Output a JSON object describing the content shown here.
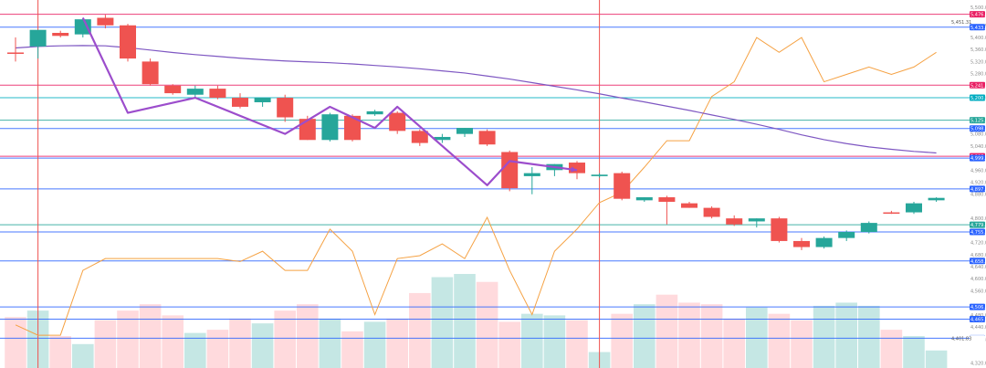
{
  "chart_data": {
    "type": "candlestick",
    "title": "",
    "xlabel": "",
    "ylabel": "",
    "ylim": [
      4304,
      5524
    ],
    "grid": false,
    "price_axis_ticks": [
      "5,500.00",
      "5,440.00",
      "5,400.00",
      "5,360.00",
      "5,320.00",
      "5,280.00",
      "5,200.00",
      "5,080.00",
      "5,040.00",
      "4,960.00",
      "4,920.00",
      "4,880.00",
      "4,800.00",
      "4,720.00",
      "4,680.00",
      "4,640.00",
      "4,600.00",
      "4,560.00",
      "4,480.00",
      "4,440.00",
      "4,400.00",
      "4,320.00"
    ],
    "candles": [
      {
        "o": 5350,
        "h": 5400,
        "l": 5320,
        "c": 5350,
        "dir": "down"
      },
      {
        "o": 5370,
        "h": 5420,
        "l": 5330,
        "c": 5425,
        "dir": "up"
      },
      {
        "o": 5415,
        "h": 5422,
        "l": 5400,
        "c": 5405,
        "dir": "down"
      },
      {
        "o": 5410,
        "h": 5465,
        "l": 5400,
        "c": 5460,
        "dir": "up"
      },
      {
        "o": 5465,
        "h": 5475,
        "l": 5430,
        "c": 5440,
        "dir": "down"
      },
      {
        "o": 5440,
        "h": 5445,
        "l": 5320,
        "c": 5330,
        "dir": "down"
      },
      {
        "o": 5320,
        "h": 5330,
        "l": 5240,
        "c": 5245,
        "dir": "down"
      },
      {
        "o": 5240,
        "h": 5245,
        "l": 5210,
        "c": 5215,
        "dir": "down"
      },
      {
        "o": 5210,
        "h": 5240,
        "l": 5200,
        "c": 5230,
        "dir": "up"
      },
      {
        "o": 5230,
        "h": 5240,
        "l": 5195,
        "c": 5200,
        "dir": "down"
      },
      {
        "o": 5200,
        "h": 5215,
        "l": 5165,
        "c": 5170,
        "dir": "down"
      },
      {
        "o": 5185,
        "h": 5200,
        "l": 5170,
        "c": 5200,
        "dir": "up"
      },
      {
        "o": 5200,
        "h": 5210,
        "l": 5120,
        "c": 5135,
        "dir": "down"
      },
      {
        "o": 5130,
        "h": 5140,
        "l": 5060,
        "c": 5060,
        "dir": "down"
      },
      {
        "o": 5060,
        "h": 5150,
        "l": 5055,
        "c": 5145,
        "dir": "up"
      },
      {
        "o": 5140,
        "h": 5145,
        "l": 5055,
        "c": 5060,
        "dir": "down"
      },
      {
        "o": 5155,
        "h": 5160,
        "l": 5140,
        "c": 5145,
        "dir": "up"
      },
      {
        "o": 5150,
        "h": 5155,
        "l": 5080,
        "c": 5090,
        "dir": "down"
      },
      {
        "o": 5090,
        "h": 5095,
        "l": 5040,
        "c": 5050,
        "dir": "down"
      },
      {
        "o": 5060,
        "h": 5080,
        "l": 5050,
        "c": 5070,
        "dir": "up"
      },
      {
        "o": 5080,
        "h": 5100,
        "l": 5070,
        "c": 5100,
        "dir": "up"
      },
      {
        "o": 5090,
        "h": 5095,
        "l": 5040,
        "c": 5045,
        "dir": "down"
      },
      {
        "o": 5020,
        "h": 5025,
        "l": 4890,
        "c": 4900,
        "dir": "down"
      },
      {
        "o": 4940,
        "h": 4970,
        "l": 4880,
        "c": 4950,
        "dir": "up"
      },
      {
        "o": 4960,
        "h": 4980,
        "l": 4940,
        "c": 4980,
        "dir": "up"
      },
      {
        "o": 4985,
        "h": 4990,
        "l": 4930,
        "c": 4950,
        "dir": "down"
      },
      {
        "o": 4940,
        "h": 4950,
        "l": 4935,
        "c": 4945,
        "dir": "up"
      },
      {
        "o": 4950,
        "h": 4955,
        "l": 4860,
        "c": 4865,
        "dir": "down"
      },
      {
        "o": 4860,
        "h": 4870,
        "l": 4855,
        "c": 4870,
        "dir": "up"
      },
      {
        "o": 4870,
        "h": 4875,
        "l": 4780,
        "c": 4855,
        "dir": "down"
      },
      {
        "o": 4850,
        "h": 4855,
        "l": 4835,
        "c": 4835,
        "dir": "down"
      },
      {
        "o": 4835,
        "h": 4840,
        "l": 4800,
        "c": 4805,
        "dir": "down"
      },
      {
        "o": 4800,
        "h": 4810,
        "l": 4775,
        "c": 4780,
        "dir": "down"
      },
      {
        "o": 4790,
        "h": 4800,
        "l": 4770,
        "c": 4800,
        "dir": "up"
      },
      {
        "o": 4800,
        "h": 4805,
        "l": 4720,
        "c": 4725,
        "dir": "down"
      },
      {
        "o": 4725,
        "h": 4735,
        "l": 4695,
        "c": 4705,
        "dir": "down"
      },
      {
        "o": 4705,
        "h": 4740,
        "l": 4700,
        "c": 4735,
        "dir": "up"
      },
      {
        "o": 4735,
        "h": 4760,
        "l": 4725,
        "c": 4755,
        "dir": "up"
      },
      {
        "o": 4755,
        "h": 4790,
        "l": 4750,
        "c": 4785,
        "dir": "up"
      },
      {
        "o": 4820,
        "h": 4825,
        "l": 4815,
        "c": 4820,
        "dir": "down"
      },
      {
        "o": 4820,
        "h": 4855,
        "l": 4815,
        "c": 4850,
        "dir": "up"
      },
      {
        "o": 4860,
        "h": 4870,
        "l": 4855,
        "c": 4868,
        "dir": "up"
      }
    ],
    "moving_average": [
      5365,
      5370,
      5372,
      5373,
      5372,
      5366,
      5358,
      5350,
      5343,
      5337,
      5331,
      5326,
      5322,
      5319,
      5316,
      5312,
      5307,
      5302,
      5296,
      5289,
      5282,
      5272,
      5262,
      5250,
      5238,
      5226,
      5213,
      5199,
      5186,
      5172,
      5158,
      5143,
      5128,
      5112,
      5095,
      5077,
      5061,
      5048,
      5037,
      5029,
      5022,
      5017
    ],
    "volume": [
      3.2,
      3.6,
      2.0,
      1.5,
      3.0,
      3.6,
      4.0,
      3.3,
      2.2,
      2.4,
      3.1,
      2.8,
      3.6,
      4.0,
      3.1,
      2.3,
      2.9,
      3.1,
      4.7,
      5.7,
      5.9,
      5.4,
      2.9,
      3.4,
      3.3,
      3.0,
      1.0,
      3.4,
      4.0,
      4.6,
      4.1,
      4.0,
      3.1,
      3.8,
      3.4,
      3.0,
      3.9,
      4.1,
      3.9,
      2.4,
      2.0,
      1.1
    ],
    "oscillator": [
      15,
      8,
      8,
      52,
      60,
      60,
      60,
      60,
      60,
      60,
      58,
      65,
      52,
      52,
      80,
      65,
      22,
      60,
      62,
      70,
      60,
      88,
      52,
      22,
      65,
      80,
      98,
      105,
      122,
      140,
      140,
      170,
      180,
      210,
      200,
      210,
      180,
      185,
      190,
      185,
      190,
      200
    ],
    "zigzag_points": [
      [
        3,
        5465
      ],
      [
        5,
        5150
      ],
      [
        8,
        5200
      ],
      [
        12,
        5080
      ],
      [
        14,
        5170
      ],
      [
        16,
        5100
      ],
      [
        17,
        5170
      ],
      [
        21,
        4910
      ],
      [
        22,
        4990
      ],
      [
        25,
        4960
      ]
    ],
    "horizontal_levels": [
      {
        "label": "5,476.58",
        "value": 5476.58,
        "color": "#e91e63"
      },
      {
        "label": "5,451.31",
        "value": 5451.31,
        "color": "#ffffff",
        "text_color": "#444444"
      },
      {
        "label": "5,433.90",
        "value": 5433.9,
        "color": "#2962ff"
      },
      {
        "label": "5,241.70",
        "value": 5241.7,
        "color": "#e91e63"
      },
      {
        "label": "5,200.00",
        "value": 5200.0,
        "color": "#00acc1"
      },
      {
        "label": "5,125.44",
        "value": 5125.44,
        "color": "#26a69a"
      },
      {
        "label": "5,098.08",
        "value": 5098.08,
        "color": "#2962ff"
      },
      {
        "label": "5,006.03",
        "value": 5006.03,
        "color": "#e91e63"
      },
      {
        "label": "4,999.75",
        "value": 4999.75,
        "color": "#2962ff"
      },
      {
        "label": "4,897.77",
        "value": 4897.77,
        "color": "#2962ff"
      },
      {
        "label": "4,779.05",
        "value": 4779.05,
        "color": "#26a69a"
      },
      {
        "label": "4,755.21",
        "value": 4755.21,
        "color": "#2962ff"
      },
      {
        "label": "4,658.80",
        "value": 4658.8,
        "color": "#2962ff"
      },
      {
        "label": "4,506.59",
        "value": 4506.59,
        "color": "#2962ff"
      },
      {
        "label": "4,465.80",
        "value": 4465.8,
        "color": "#2962ff"
      },
      {
        "label": "4,402.59",
        "value": 4402.59,
        "color": "#2962ff"
      },
      {
        "label": "4,401.83",
        "value": 4401.83,
        "color": "#ffffff",
        "text_color": "#444444"
      }
    ],
    "side_labels": [
      "5,451.31",
      "4,401.83"
    ],
    "vertical_markers": [
      1,
      26
    ],
    "colors": {
      "up": "#26a69a",
      "down": "#ef5350",
      "up_volume": "#b2dfdb",
      "down_volume": "#ffcdd2",
      "moving_average": "#7e57c2",
      "oscillator": "#f5a142",
      "zigzag": "#9c4dcc",
      "vertical_marker": "#ef5350"
    }
  }
}
